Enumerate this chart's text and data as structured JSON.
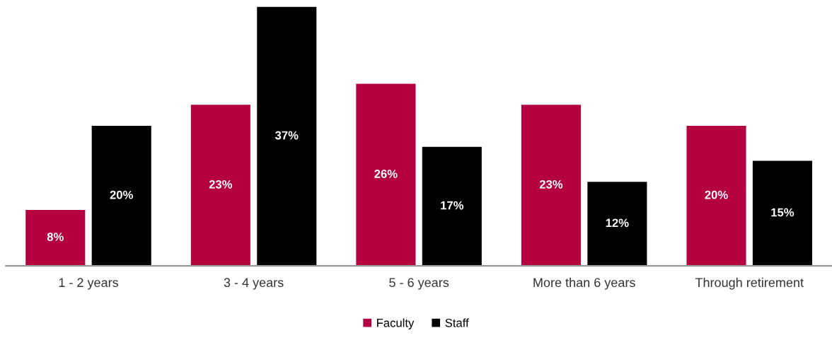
{
  "chart_data": {
    "type": "bar",
    "categories": [
      "1 - 2 years",
      "3 - 4 years",
      "5 - 6 years",
      "More than 6 years",
      "Through retirement"
    ],
    "series": [
      {
        "name": "Faculty",
        "color": "#b5003f",
        "values": [
          8,
          23,
          26,
          23,
          20
        ],
        "value_labels": [
          "8%",
          "23%",
          "26%",
          "23%",
          "20%"
        ]
      },
      {
        "name": "Staff",
        "color": "#000000",
        "values": [
          20,
          37,
          17,
          12,
          15
        ],
        "value_labels": [
          "20%",
          "37%",
          "17%",
          "12%",
          "15%"
        ]
      }
    ],
    "grid": false,
    "legend": "bottom"
  }
}
